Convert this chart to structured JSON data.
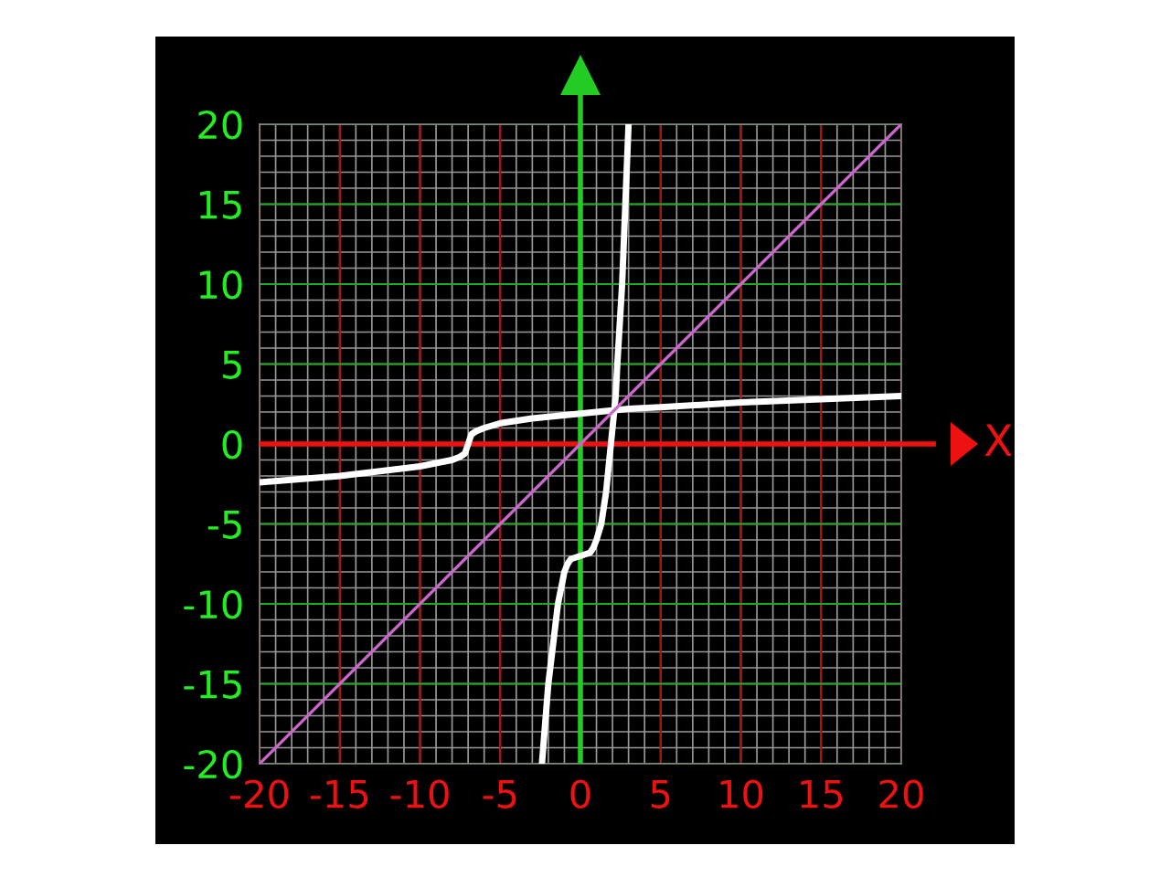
{
  "chart_data": {
    "type": "line",
    "xlabel": "X",
    "xlim": [
      -20,
      20
    ],
    "ylim": [
      -20,
      20
    ],
    "xticks": [
      -20,
      -15,
      -10,
      -5,
      0,
      5,
      10,
      15,
      20
    ],
    "yticks": [
      -20,
      -15,
      -10,
      -5,
      0,
      5,
      10,
      15,
      20
    ],
    "grid": true,
    "marker": "none",
    "line_style": "solid",
    "series": [
      {
        "color": "#ffffff",
        "x": [
          -20,
          -15,
          -10,
          -8,
          -7.5,
          -7.2,
          -7,
          -6.8,
          -6.5,
          -6,
          -5,
          -3,
          0,
          3,
          5,
          10,
          15,
          20
        ],
        "values": [
          -2.4,
          -2.0,
          -1.4,
          -1.0,
          -0.8,
          -0.6,
          0,
          0.6,
          0.8,
          1.0,
          1.3,
          1.6,
          1.9,
          2.2,
          2.3,
          2.6,
          2.8,
          3.0
        ]
      },
      {
        "color": "#ffffff",
        "x": [
          -2.4,
          -2.0,
          -1.4,
          -1.0,
          -0.8,
          -0.6,
          0,
          0.6,
          0.8,
          1.0,
          1.3,
          1.6,
          1.9,
          2.2,
          2.3,
          2.6,
          2.8,
          3.0
        ],
        "values": [
          -20,
          -15,
          -10,
          -8,
          -7.5,
          -7.2,
          -7,
          -6.8,
          -6.5,
          -6,
          -5,
          -3,
          0,
          3,
          5,
          10,
          15,
          20
        ]
      },
      {
        "color": "#cc66cc",
        "x": [
          -20,
          20
        ],
        "values": [
          -20,
          20
        ]
      }
    ],
    "ref_lines": [
      {
        "axis": "y",
        "value": 0,
        "color": "#ee1111"
      },
      {
        "axis": "x",
        "value": 0,
        "color": "#22cc22"
      }
    ]
  }
}
